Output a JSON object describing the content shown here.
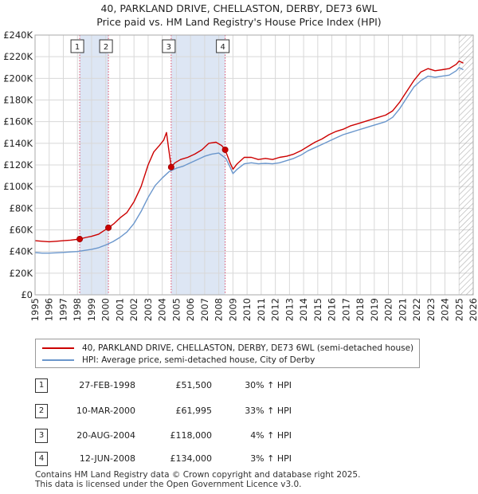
{
  "title_line1": "40, PARKLAND DRIVE, CHELLASTON, DERBY, DE73 6WL",
  "title_line2": "Price paid vs. HM Land Registry's House Price Index (HPI)",
  "colors": {
    "property": "#cc0000",
    "hpi": "#6a96cc",
    "shade": "#dde6f4",
    "marker_line": "#d94a6a",
    "grid": "#d8d8d8",
    "hatch": "#999999"
  },
  "legend": {
    "property_label": "40, PARKLAND DRIVE, CHELLASTON, DERBY, DE73 6WL (semi-detached house)",
    "hpi_label": "HPI: Average price, semi-detached house, City of Derby"
  },
  "transactions": [
    {
      "num": "1",
      "date": "27-FEB-1998",
      "price": "£51,500",
      "hpi": "30% ↑ HPI"
    },
    {
      "num": "2",
      "date": "10-MAR-2000",
      "price": "£61,995",
      "hpi": "33% ↑ HPI"
    },
    {
      "num": "3",
      "date": "20-AUG-2004",
      "price": "£118,000",
      "hpi": "4% ↑ HPI"
    },
    {
      "num": "4",
      "date": "12-JUN-2008",
      "price": "£134,000",
      "hpi": "3% ↑ HPI"
    }
  ],
  "footer_line1": "Contains HM Land Registry data © Crown copyright and database right 2025.",
  "footer_line2": "This data is licensed under the Open Government Licence v3.0.",
  "chart_data": {
    "type": "line",
    "title": "40, PARKLAND DRIVE, CHELLASTON, DERBY, DE73 6WL — Price paid vs. HM Land Registry's House Price Index (HPI)",
    "xlabel": "",
    "ylabel": "",
    "xlim": [
      1995,
      2026
    ],
    "ylim": [
      0,
      240000
    ],
    "x_ticks": [
      1995,
      1996,
      1997,
      1998,
      1999,
      2000,
      2001,
      2002,
      2003,
      2004,
      2005,
      2006,
      2007,
      2008,
      2009,
      2010,
      2011,
      2012,
      2013,
      2014,
      2015,
      2016,
      2017,
      2018,
      2019,
      2020,
      2021,
      2022,
      2023,
      2024,
      2025,
      2026
    ],
    "y_ticks": [
      0,
      20000,
      40000,
      60000,
      80000,
      100000,
      120000,
      140000,
      160000,
      180000,
      200000,
      220000,
      240000
    ],
    "y_tick_labels": [
      "£0",
      "£20K",
      "£40K",
      "£60K",
      "£80K",
      "£100K",
      "£120K",
      "£140K",
      "£160K",
      "£180K",
      "£200K",
      "£220K",
      "£240K"
    ],
    "grid": true,
    "shaded_ranges": [
      [
        1998.16,
        2000.19
      ],
      [
        2004.63,
        2008.45
      ]
    ],
    "hatched_from": 2025.0,
    "series": [
      {
        "name": "40, PARKLAND DRIVE, CHELLASTON, DERBY, DE73 6WL (semi-detached house)",
        "color": "#cc0000",
        "x": [
          1995.0,
          1995.5,
          1996.0,
          1996.5,
          1997.0,
          1997.5,
          1998.16,
          1998.6,
          1999.0,
          1999.5,
          2000.19,
          2000.6,
          2001.0,
          2001.5,
          2002.0,
          2002.5,
          2003.0,
          2003.4,
          2003.8,
          2004.1,
          2004.3,
          2004.45,
          2004.63,
          2004.9,
          2005.3,
          2005.8,
          2006.3,
          2006.8,
          2007.3,
          2007.8,
          2008.2,
          2008.45,
          2008.8,
          2009.0,
          2009.3,
          2009.8,
          2010.3,
          2010.8,
          2011.3,
          2011.8,
          2012.3,
          2012.8,
          2013.3,
          2013.8,
          2014.3,
          2014.8,
          2015.3,
          2015.8,
          2016.3,
          2016.8,
          2017.3,
          2017.8,
          2018.3,
          2018.8,
          2019.3,
          2019.8,
          2020.3,
          2020.8,
          2021.3,
          2021.8,
          2022.3,
          2022.8,
          2023.3,
          2023.8,
          2024.3,
          2024.8,
          2025.0,
          2025.3
        ],
        "y": [
          50000,
          49500,
          49000,
          49500,
          50000,
          50500,
          51500,
          53000,
          54000,
          56000,
          61995,
          66000,
          71000,
          76000,
          86000,
          100000,
          120000,
          132000,
          138000,
          143000,
          150000,
          135000,
          118000,
          122000,
          125000,
          127000,
          130000,
          134000,
          140000,
          141000,
          138000,
          134000,
          122000,
          116000,
          121000,
          127000,
          127000,
          125000,
          126000,
          125000,
          127000,
          128000,
          130000,
          133000,
          137000,
          141000,
          144000,
          148000,
          151000,
          153000,
          156000,
          158000,
          160000,
          162000,
          164000,
          166000,
          170000,
          178000,
          188000,
          198000,
          206000,
          209000,
          207000,
          208000,
          209000,
          213000,
          216000,
          214000
        ]
      },
      {
        "name": "HPI: Average price, semi-detached house, City of Derby",
        "color": "#6a96cc",
        "x": [
          1995.0,
          1995.5,
          1996.0,
          1996.5,
          1997.0,
          1997.5,
          1998.0,
          1998.5,
          1999.0,
          1999.5,
          2000.0,
          2000.5,
          2001.0,
          2001.5,
          2002.0,
          2002.5,
          2003.0,
          2003.5,
          2004.0,
          2004.5,
          2005.0,
          2005.5,
          2006.0,
          2006.5,
          2007.0,
          2007.5,
          2008.0,
          2008.5,
          2008.8,
          2009.0,
          2009.3,
          2009.8,
          2010.3,
          2010.8,
          2011.3,
          2011.8,
          2012.3,
          2012.8,
          2013.3,
          2013.8,
          2014.3,
          2014.8,
          2015.3,
          2015.8,
          2016.3,
          2016.8,
          2017.3,
          2017.8,
          2018.3,
          2018.8,
          2019.3,
          2019.8,
          2020.3,
          2020.8,
          2021.3,
          2021.8,
          2022.3,
          2022.8,
          2023.3,
          2023.8,
          2024.3,
          2024.8,
          2025.0,
          2025.3
        ],
        "y": [
          39000,
          38500,
          38500,
          38800,
          39200,
          39600,
          40000,
          41000,
          42000,
          43500,
          46000,
          49000,
          53000,
          58000,
          66000,
          77000,
          90000,
          101000,
          108000,
          114000,
          117000,
          119000,
          122000,
          125000,
          128000,
          130000,
          131000,
          126000,
          118000,
          112000,
          116000,
          121000,
          122000,
          121000,
          121500,
          121000,
          122000,
          124000,
          126000,
          129000,
          133000,
          136000,
          139000,
          142000,
          145000,
          148000,
          150000,
          152000,
          154000,
          156000,
          158000,
          160000,
          164000,
          172000,
          182000,
          192000,
          198000,
          202000,
          201000,
          202000,
          203000,
          207000,
          210000,
          208000
        ]
      }
    ],
    "markers": [
      {
        "label": "1",
        "x": 1998.16,
        "y": 51500
      },
      {
        "label": "2",
        "x": 2000.19,
        "y": 61995
      },
      {
        "label": "3",
        "x": 2004.63,
        "y": 118000
      },
      {
        "label": "4",
        "x": 2008.45,
        "y": 134000
      }
    ]
  }
}
